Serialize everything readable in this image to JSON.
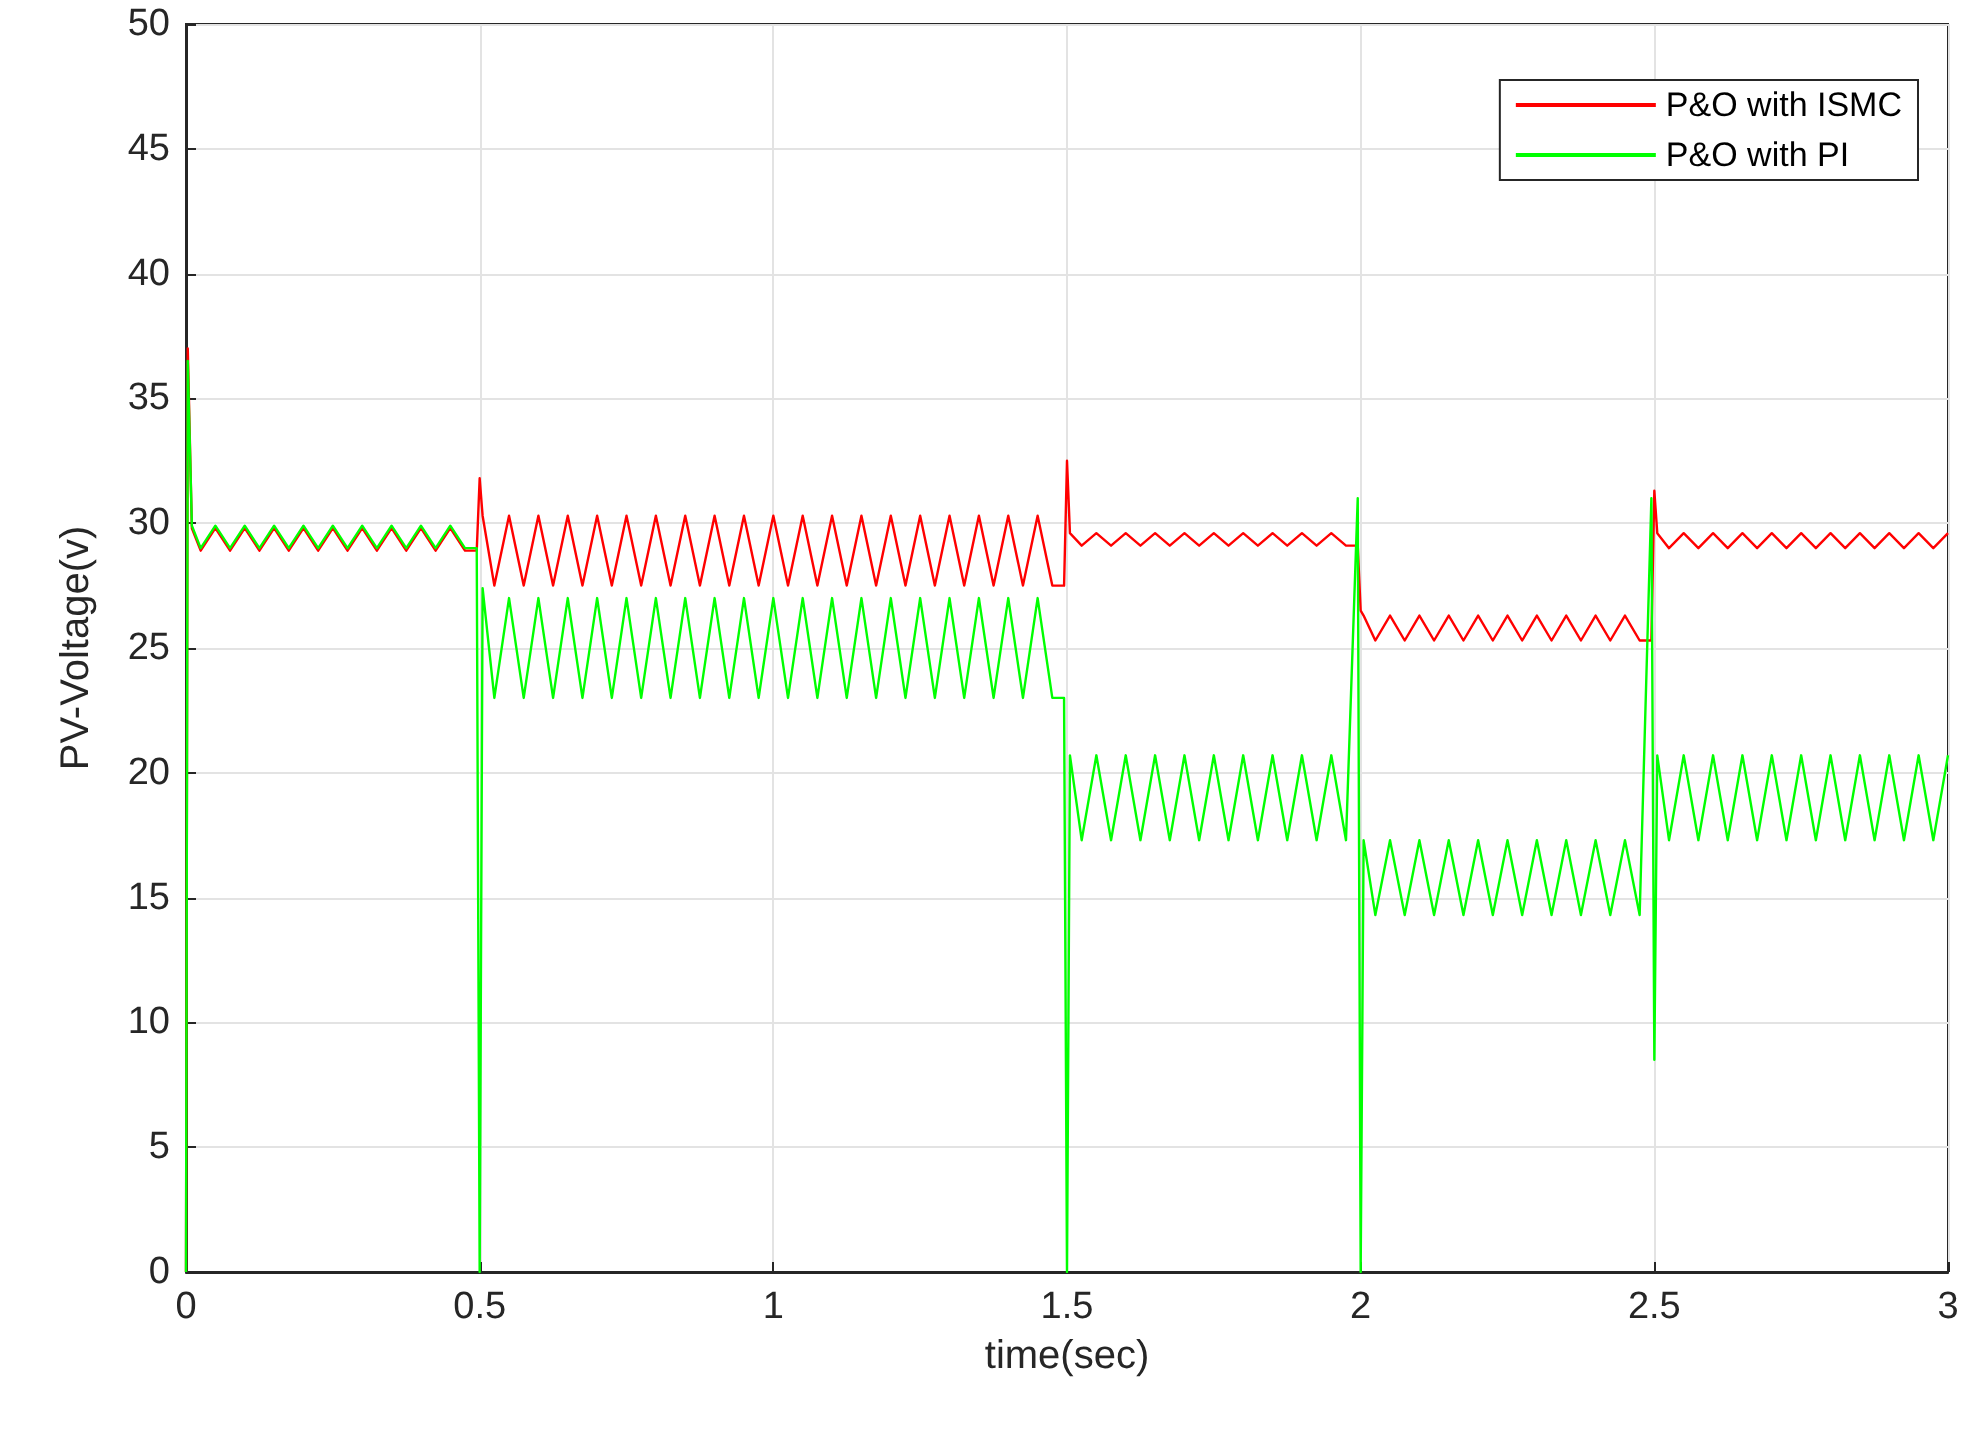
{
  "chart_data": {
    "type": "line",
    "xlabel": "time(sec)",
    "ylabel": "PV-Voltage(v)",
    "x": [
      0,
      0.003,
      0.01,
      0.025,
      0.05,
      0.075,
      0.1,
      0.125,
      0.15,
      0.175,
      0.2,
      0.225,
      0.25,
      0.275,
      0.3,
      0.325,
      0.35,
      0.375,
      0.4,
      0.425,
      0.45,
      0.475,
      0.495,
      0.5,
      0.505,
      0.525,
      0.55,
      0.575,
      0.6,
      0.625,
      0.65,
      0.675,
      0.7,
      0.725,
      0.75,
      0.775,
      0.8,
      0.825,
      0.85,
      0.875,
      0.9,
      0.925,
      0.95,
      0.975,
      1,
      1.025,
      1.05,
      1.075,
      1.1,
      1.125,
      1.15,
      1.175,
      1.2,
      1.225,
      1.25,
      1.275,
      1.3,
      1.325,
      1.35,
      1.375,
      1.4,
      1.425,
      1.45,
      1.475,
      1.495,
      1.5,
      1.505,
      1.525,
      1.55,
      1.575,
      1.6,
      1.625,
      1.65,
      1.675,
      1.7,
      1.725,
      1.75,
      1.775,
      1.8,
      1.825,
      1.85,
      1.875,
      1.9,
      1.925,
      1.95,
      1.975,
      1.995,
      2,
      2.005,
      2.025,
      2.05,
      2.075,
      2.1,
      2.125,
      2.15,
      2.175,
      2.2,
      2.225,
      2.25,
      2.275,
      2.3,
      2.325,
      2.35,
      2.375,
      2.4,
      2.425,
      2.45,
      2.475,
      2.495,
      2.5,
      2.505,
      2.525,
      2.55,
      2.575,
      2.6,
      2.625,
      2.65,
      2.675,
      2.7,
      2.725,
      2.75,
      2.775,
      2.8,
      2.825,
      2.85,
      2.875,
      2.9,
      2.925,
      2.95,
      2.975,
      3
    ],
    "series": [
      {
        "name": "P&O with ISMC",
        "color": "#ff0000",
        "values": [
          0,
          37,
          29.8,
          28.9,
          29.8,
          28.9,
          29.8,
          28.9,
          29.8,
          28.9,
          29.8,
          28.9,
          29.8,
          28.9,
          29.8,
          28.9,
          29.8,
          28.9,
          29.8,
          28.9,
          29.8,
          28.9,
          28.9,
          31.8,
          30.3,
          27.5,
          30.3,
          27.5,
          30.3,
          27.5,
          30.3,
          27.5,
          30.3,
          27.5,
          30.3,
          27.5,
          30.3,
          27.5,
          30.3,
          27.5,
          30.3,
          27.5,
          30.3,
          27.5,
          30.3,
          27.5,
          30.3,
          27.5,
          30.3,
          27.5,
          30.3,
          27.5,
          30.3,
          27.5,
          30.3,
          27.5,
          30.3,
          27.5,
          30.3,
          27.5,
          30.3,
          27.5,
          30.3,
          27.5,
          27.5,
          32.5,
          29.6,
          29.1,
          29.6,
          29.1,
          29.6,
          29.1,
          29.6,
          29.1,
          29.6,
          29.1,
          29.6,
          29.1,
          29.6,
          29.1,
          29.6,
          29.1,
          29.6,
          29.1,
          29.6,
          29.1,
          29.1,
          26.5,
          26.3,
          25.3,
          26.3,
          25.3,
          26.3,
          25.3,
          26.3,
          25.3,
          26.3,
          25.3,
          26.3,
          25.3,
          26.3,
          25.3,
          26.3,
          25.3,
          26.3,
          25.3,
          26.3,
          25.3,
          25.3,
          31.3,
          29.6,
          29.0,
          29.6,
          29.0,
          29.6,
          29.0,
          29.6,
          29.0,
          29.6,
          29.0,
          29.6,
          29.0,
          29.6,
          29.0,
          29.6,
          29.0,
          29.6,
          29.0,
          29.6,
          29.0,
          29.6
        ]
      },
      {
        "name": "P&O with PI",
        "color": "#00ff00",
        "values": [
          0,
          36.5,
          29.9,
          29.0,
          29.9,
          29.0,
          29.9,
          29.0,
          29.9,
          29.0,
          29.9,
          29.0,
          29.9,
          29.0,
          29.9,
          29.0,
          29.9,
          29.0,
          29.9,
          29.0,
          29.9,
          29.0,
          29.0,
          0,
          27.4,
          23.0,
          27.0,
          23.0,
          27.0,
          23.0,
          27.0,
          23.0,
          27.0,
          23.0,
          27.0,
          23.0,
          27.0,
          23.0,
          27.0,
          23.0,
          27.0,
          23.0,
          27.0,
          23.0,
          27.0,
          23.0,
          27.0,
          23.0,
          27.0,
          23.0,
          27.0,
          23.0,
          27.0,
          23.0,
          27.0,
          23.0,
          27.0,
          23.0,
          27.0,
          23.0,
          27.0,
          23.0,
          27.0,
          23.0,
          23.0,
          0,
          20.7,
          17.3,
          20.7,
          17.3,
          20.7,
          17.3,
          20.7,
          17.3,
          20.7,
          17.3,
          20.7,
          17.3,
          20.7,
          17.3,
          20.7,
          17.3,
          20.7,
          17.3,
          20.7,
          17.3,
          31,
          0,
          17.3,
          14.3,
          17.3,
          14.3,
          17.3,
          14.3,
          17.3,
          14.3,
          17.3,
          14.3,
          17.3,
          14.3,
          17.3,
          14.3,
          17.3,
          14.3,
          17.3,
          14.3,
          17.3,
          14.3,
          31,
          8.5,
          20.7,
          17.3,
          20.7,
          17.3,
          20.7,
          17.3,
          20.7,
          17.3,
          20.7,
          17.3,
          20.7,
          17.3,
          20.7,
          17.3,
          20.7,
          17.3,
          20.7,
          17.3,
          20.7,
          17.3,
          20.7
        ]
      }
    ],
    "xlim": [
      0,
      3
    ],
    "xticks": [
      0,
      0.5,
      1,
      1.5,
      2,
      2.5,
      3
    ],
    "ylim": [
      0,
      50
    ],
    "yticks": [
      0,
      5,
      10,
      15,
      20,
      25,
      30,
      35,
      40,
      45,
      50
    ],
    "grid": true,
    "legend": "top right",
    "marker": "none",
    "line_style": "solid"
  }
}
